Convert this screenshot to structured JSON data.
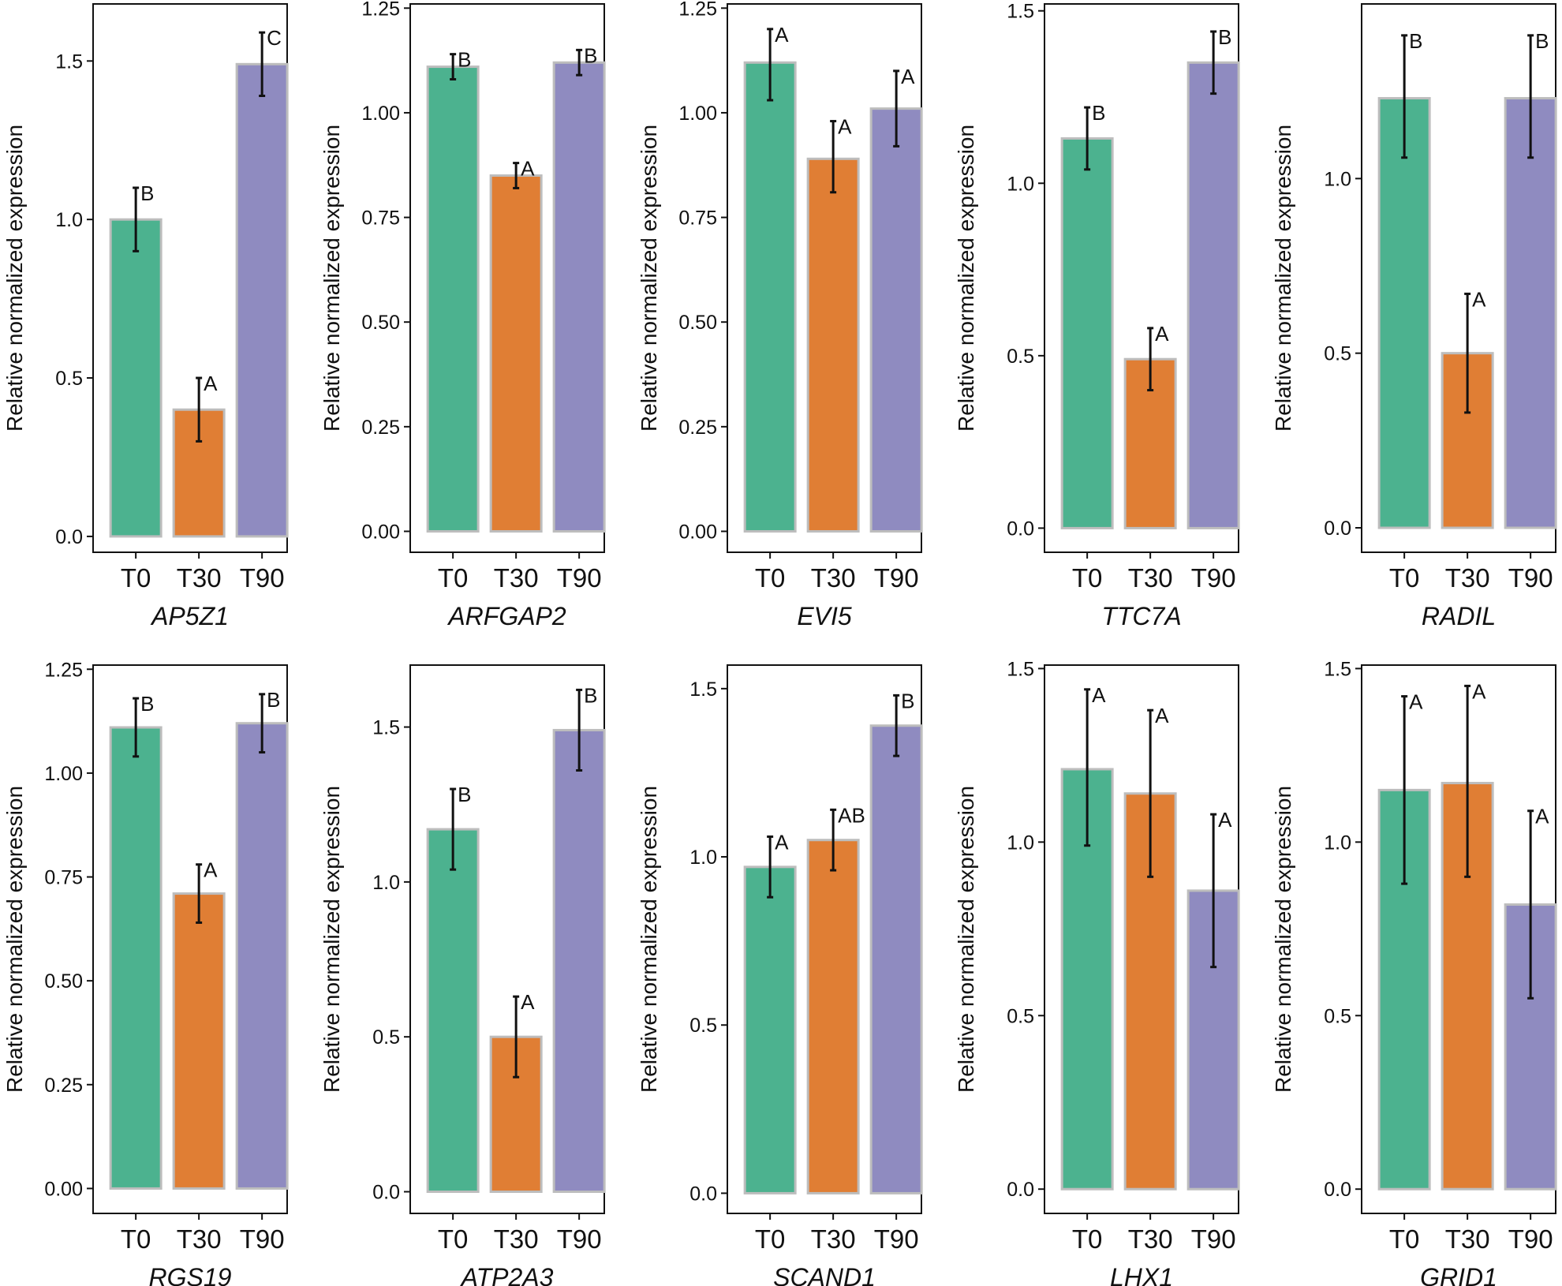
{
  "colors": {
    "T0": "#4CB28F",
    "T30": "#E07E34",
    "T90": "#8F8BC0",
    "bar_outline": "#BDBDBD",
    "axis": "#111111"
  },
  "chart_data": [
    {
      "type": "bar",
      "title": "AP5Z1",
      "xlabel": "AP5Z1",
      "ylabel": "Relative normalized expression",
      "categories": [
        "T0",
        "T30",
        "T90"
      ],
      "values": [
        1.0,
        0.4,
        1.49
      ],
      "errors_low": [
        0.9,
        0.3,
        1.39
      ],
      "errors_high": [
        1.1,
        0.5,
        1.59
      ],
      "letters": [
        "B",
        "A",
        "C"
      ],
      "ylim": [
        -0.05,
        1.68
      ],
      "yticks": [
        0.0,
        0.5,
        1.0,
        1.5
      ],
      "ytick_labels": [
        "0.0",
        "0.5",
        "1.0",
        "1.5"
      ]
    },
    {
      "type": "bar",
      "title": "ARFGAP2",
      "xlabel": "ARFGAP2",
      "ylabel": "Relative normalized expression",
      "categories": [
        "T0",
        "T30",
        "T90"
      ],
      "values": [
        1.11,
        0.85,
        1.12
      ],
      "errors_low": [
        1.08,
        0.82,
        1.09
      ],
      "errors_high": [
        1.14,
        0.88,
        1.15
      ],
      "letters": [
        "B",
        "A",
        "B"
      ],
      "ylim": [
        -0.05,
        1.26
      ],
      "yticks": [
        0.0,
        0.25,
        0.5,
        0.75,
        1.0,
        1.25
      ],
      "ytick_labels": [
        "0.00",
        "0.25",
        "0.50",
        "0.75",
        "1.00",
        "1.25"
      ]
    },
    {
      "type": "bar",
      "title": "EVI5",
      "xlabel": "EVI5",
      "ylabel": "Relative normalized expression",
      "categories": [
        "T0",
        "T30",
        "T90"
      ],
      "values": [
        1.12,
        0.89,
        1.01
      ],
      "errors_low": [
        1.03,
        0.81,
        0.92
      ],
      "errors_high": [
        1.2,
        0.98,
        1.1
      ],
      "letters": [
        "A",
        "A",
        "A"
      ],
      "ylim": [
        -0.05,
        1.26
      ],
      "yticks": [
        0.0,
        0.25,
        0.5,
        0.75,
        1.0,
        1.25
      ],
      "ytick_labels": [
        "0.00",
        "0.25",
        "0.50",
        "0.75",
        "1.00",
        "1.25"
      ]
    },
    {
      "type": "bar",
      "title": "TTC7A",
      "xlabel": "TTC7A",
      "ylabel": "Relative normalized expression",
      "categories": [
        "T0",
        "T30",
        "T90"
      ],
      "values": [
        1.13,
        0.49,
        1.35
      ],
      "errors_low": [
        1.04,
        0.4,
        1.26
      ],
      "errors_high": [
        1.22,
        0.58,
        1.44
      ],
      "letters": [
        "B",
        "A",
        "B"
      ],
      "ylim": [
        -0.07,
        1.52
      ],
      "yticks": [
        0.0,
        0.5,
        1.0,
        1.5
      ],
      "ytick_labels": [
        "0.0",
        "0.5",
        "1.0",
        "1.5"
      ]
    },
    {
      "type": "bar",
      "title": "RADIL",
      "xlabel": "RADIL",
      "ylabel": "Relative normalized expression",
      "categories": [
        "T0",
        "T30",
        "T90"
      ],
      "values": [
        1.23,
        0.5,
        1.23
      ],
      "errors_low": [
        1.06,
        0.33,
        1.06
      ],
      "errors_high": [
        1.41,
        0.67,
        1.41
      ],
      "letters": [
        "B",
        "A",
        "B"
      ],
      "ylim": [
        -0.07,
        1.5
      ],
      "yticks": [
        0.0,
        0.5,
        1.0
      ],
      "ytick_labels": [
        "0.0",
        "0.5",
        "1.0"
      ]
    },
    {
      "type": "bar",
      "title": "RGS19",
      "xlabel": "RGS19",
      "ylabel": "Relative normalized expression",
      "categories": [
        "T0",
        "T30",
        "T90"
      ],
      "values": [
        1.11,
        0.71,
        1.12
      ],
      "errors_low": [
        1.04,
        0.64,
        1.05
      ],
      "errors_high": [
        1.18,
        0.78,
        1.19
      ],
      "letters": [
        "B",
        "A",
        "B"
      ],
      "ylim": [
        -0.06,
        1.26
      ],
      "yticks": [
        0.0,
        0.25,
        0.5,
        0.75,
        1.0,
        1.25
      ],
      "ytick_labels": [
        "0.00",
        "0.25",
        "0.50",
        "0.75",
        "1.00",
        "1.25"
      ]
    },
    {
      "type": "bar",
      "title": "ATP2A3",
      "xlabel": "ATP2A3",
      "ylabel": "Relative normalized expression",
      "categories": [
        "T0",
        "T30",
        "T90"
      ],
      "values": [
        1.17,
        0.5,
        1.49
      ],
      "errors_low": [
        1.04,
        0.37,
        1.36
      ],
      "errors_high": [
        1.3,
        0.63,
        1.62
      ],
      "letters": [
        "B",
        "A",
        "B"
      ],
      "ylim": [
        -0.07,
        1.7
      ],
      "yticks": [
        0.0,
        0.5,
        1.0,
        1.5
      ],
      "ytick_labels": [
        "0.0",
        "0.5",
        "1.0",
        "1.5"
      ]
    },
    {
      "type": "bar",
      "title": "SCAND1",
      "xlabel": "SCAND1",
      "ylabel": "Relative normalized expression",
      "categories": [
        "T0",
        "T30",
        "T90"
      ],
      "values": [
        0.97,
        1.05,
        1.39
      ],
      "errors_low": [
        0.88,
        0.96,
        1.3
      ],
      "errors_high": [
        1.06,
        1.14,
        1.48
      ],
      "letters": [
        "A",
        "AB",
        "B"
      ],
      "ylim": [
        -0.06,
        1.57
      ],
      "yticks": [
        0.0,
        0.5,
        1.0,
        1.5
      ],
      "ytick_labels": [
        "0.0",
        "0.5",
        "1.0",
        "1.5"
      ]
    },
    {
      "type": "bar",
      "title": "LHX1",
      "xlabel": "LHX1",
      "ylabel": "Relative normalized expression",
      "categories": [
        "T0",
        "T30",
        "T90"
      ],
      "values": [
        1.21,
        1.14,
        0.86
      ],
      "errors_low": [
        0.99,
        0.9,
        0.64
      ],
      "errors_high": [
        1.44,
        1.38,
        1.08
      ],
      "letters": [
        "A",
        "A",
        "A"
      ],
      "ylim": [
        -0.07,
        1.51
      ],
      "yticks": [
        0.0,
        0.5,
        1.0,
        1.5
      ],
      "ytick_labels": [
        "0.0",
        "0.5",
        "1.0",
        "1.5"
      ]
    },
    {
      "type": "bar",
      "title": "GRID1",
      "xlabel": "GRID1",
      "ylabel": "Relative normalized expression",
      "categories": [
        "T0",
        "T30",
        "T90"
      ],
      "values": [
        1.15,
        1.17,
        0.82
      ],
      "errors_low": [
        0.88,
        0.9,
        0.55
      ],
      "errors_high": [
        1.42,
        1.45,
        1.09
      ],
      "letters": [
        "A",
        "A",
        "A"
      ],
      "ylim": [
        -0.07,
        1.51
      ],
      "yticks": [
        0.0,
        0.5,
        1.0,
        1.5
      ],
      "ytick_labels": [
        "0.0",
        "0.5",
        "1.0",
        "1.5"
      ]
    }
  ]
}
